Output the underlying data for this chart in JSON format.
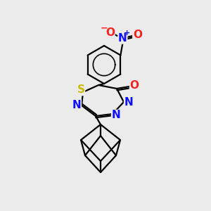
{
  "bg_color": "#ebebeb",
  "bond_color": "#000000",
  "bond_width": 1.6,
  "atom_colors": {
    "N": "#1010ff",
    "O": "#ff2020",
    "S": "#ccbb00",
    "C": "#000000"
  },
  "font_size_atom": 11,
  "font_size_charge": 8
}
